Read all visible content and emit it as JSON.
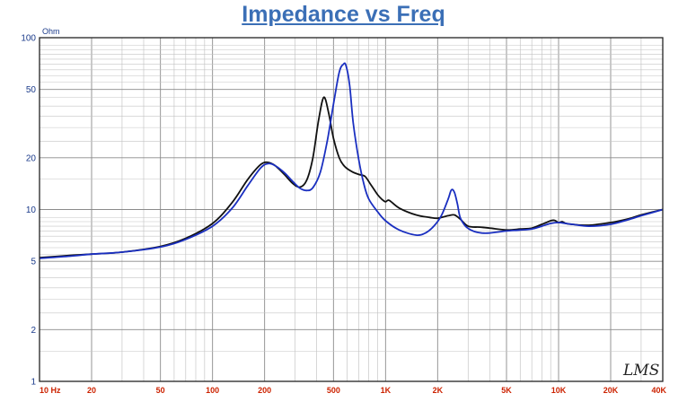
{
  "chart_data": {
    "type": "line",
    "title": "Impedance vs Freq",
    "ylabel_unit": "Ohm",
    "xscale": "log",
    "yscale": "log",
    "xlim": [
      10,
      40000
    ],
    "ylim": [
      1,
      100
    ],
    "grid": true,
    "x_tick_labels": [
      "10 Hz",
      "20",
      "50",
      "100",
      "200",
      "500",
      "1K",
      "2K",
      "5K",
      "10K",
      "20K",
      "40K"
    ],
    "x_tick_values": [
      10,
      20,
      50,
      100,
      200,
      500,
      1000,
      2000,
      5000,
      10000,
      20000,
      40000
    ],
    "y_tick_labels": [
      "100",
      "50",
      "20",
      "10",
      "5",
      "2",
      "1"
    ],
    "y_tick_values": [
      100,
      50,
      20,
      10,
      5,
      2,
      1
    ],
    "watermark": "LMS",
    "series": [
      {
        "color": "#111111",
        "x": [
          10,
          15,
          20,
          30,
          50,
          70,
          100,
          130,
          160,
          190,
          210,
          230,
          260,
          290,
          320,
          350,
          380,
          410,
          440,
          470,
          500,
          540,
          580,
          640,
          700,
          760,
          820,
          900,
          950,
          1000,
          1050,
          1200,
          1500,
          1800,
          2000,
          2300,
          2500,
          2700,
          3000,
          3500,
          4000,
          5000,
          6000,
          7000,
          8000,
          9000,
          9500,
          10000,
          10500,
          11000,
          12000,
          15000,
          20000,
          25000,
          30000,
          40000
        ],
        "y": [
          5.25,
          5.4,
          5.5,
          5.65,
          6.1,
          6.8,
          8.3,
          11,
          15,
          18.3,
          18.8,
          18,
          16,
          14.2,
          13.5,
          14.8,
          20,
          33,
          45,
          36,
          26,
          20,
          17.8,
          16.6,
          16,
          15.6,
          14,
          12.2,
          11.5,
          11.1,
          11.3,
          10.2,
          9.3,
          9,
          8.9,
          9.2,
          9.3,
          8.8,
          8,
          7.9,
          7.8,
          7.6,
          7.7,
          7.8,
          8.2,
          8.6,
          8.65,
          8.4,
          8.5,
          8.3,
          8.2,
          8.1,
          8.4,
          8.8,
          9.3,
          10
        ]
      },
      {
        "color": "#1a2fc0",
        "x": [
          10,
          15,
          20,
          30,
          50,
          70,
          100,
          130,
          160,
          190,
          210,
          230,
          260,
          290,
          320,
          350,
          380,
          420,
          460,
          500,
          540,
          570,
          590,
          620,
          650,
          700,
          750,
          800,
          900,
          1000,
          1200,
          1500,
          1700,
          1900,
          2100,
          2300,
          2400,
          2500,
          2600,
          2700,
          2900,
          3200,
          3600,
          4000,
          5000,
          6000,
          7000,
          8000,
          9000,
          10000,
          11000,
          12000,
          15000,
          20000,
          25000,
          30000,
          40000
        ],
        "y": [
          5.2,
          5.35,
          5.5,
          5.65,
          6.05,
          6.7,
          8,
          10.2,
          13.8,
          17.5,
          18.5,
          18,
          16.4,
          14.6,
          13.3,
          12.9,
          13.4,
          16.5,
          25,
          41,
          63,
          70,
          69,
          53,
          32,
          19.5,
          14,
          11.5,
          9.7,
          8.6,
          7.6,
          7.1,
          7.3,
          8,
          9.2,
          11.5,
          13,
          12.6,
          10.8,
          9,
          8,
          7.5,
          7.3,
          7.3,
          7.5,
          7.6,
          7.7,
          8,
          8.3,
          8.4,
          8.3,
          8.2,
          8,
          8.2,
          8.7,
          9.2,
          10
        ]
      }
    ]
  }
}
